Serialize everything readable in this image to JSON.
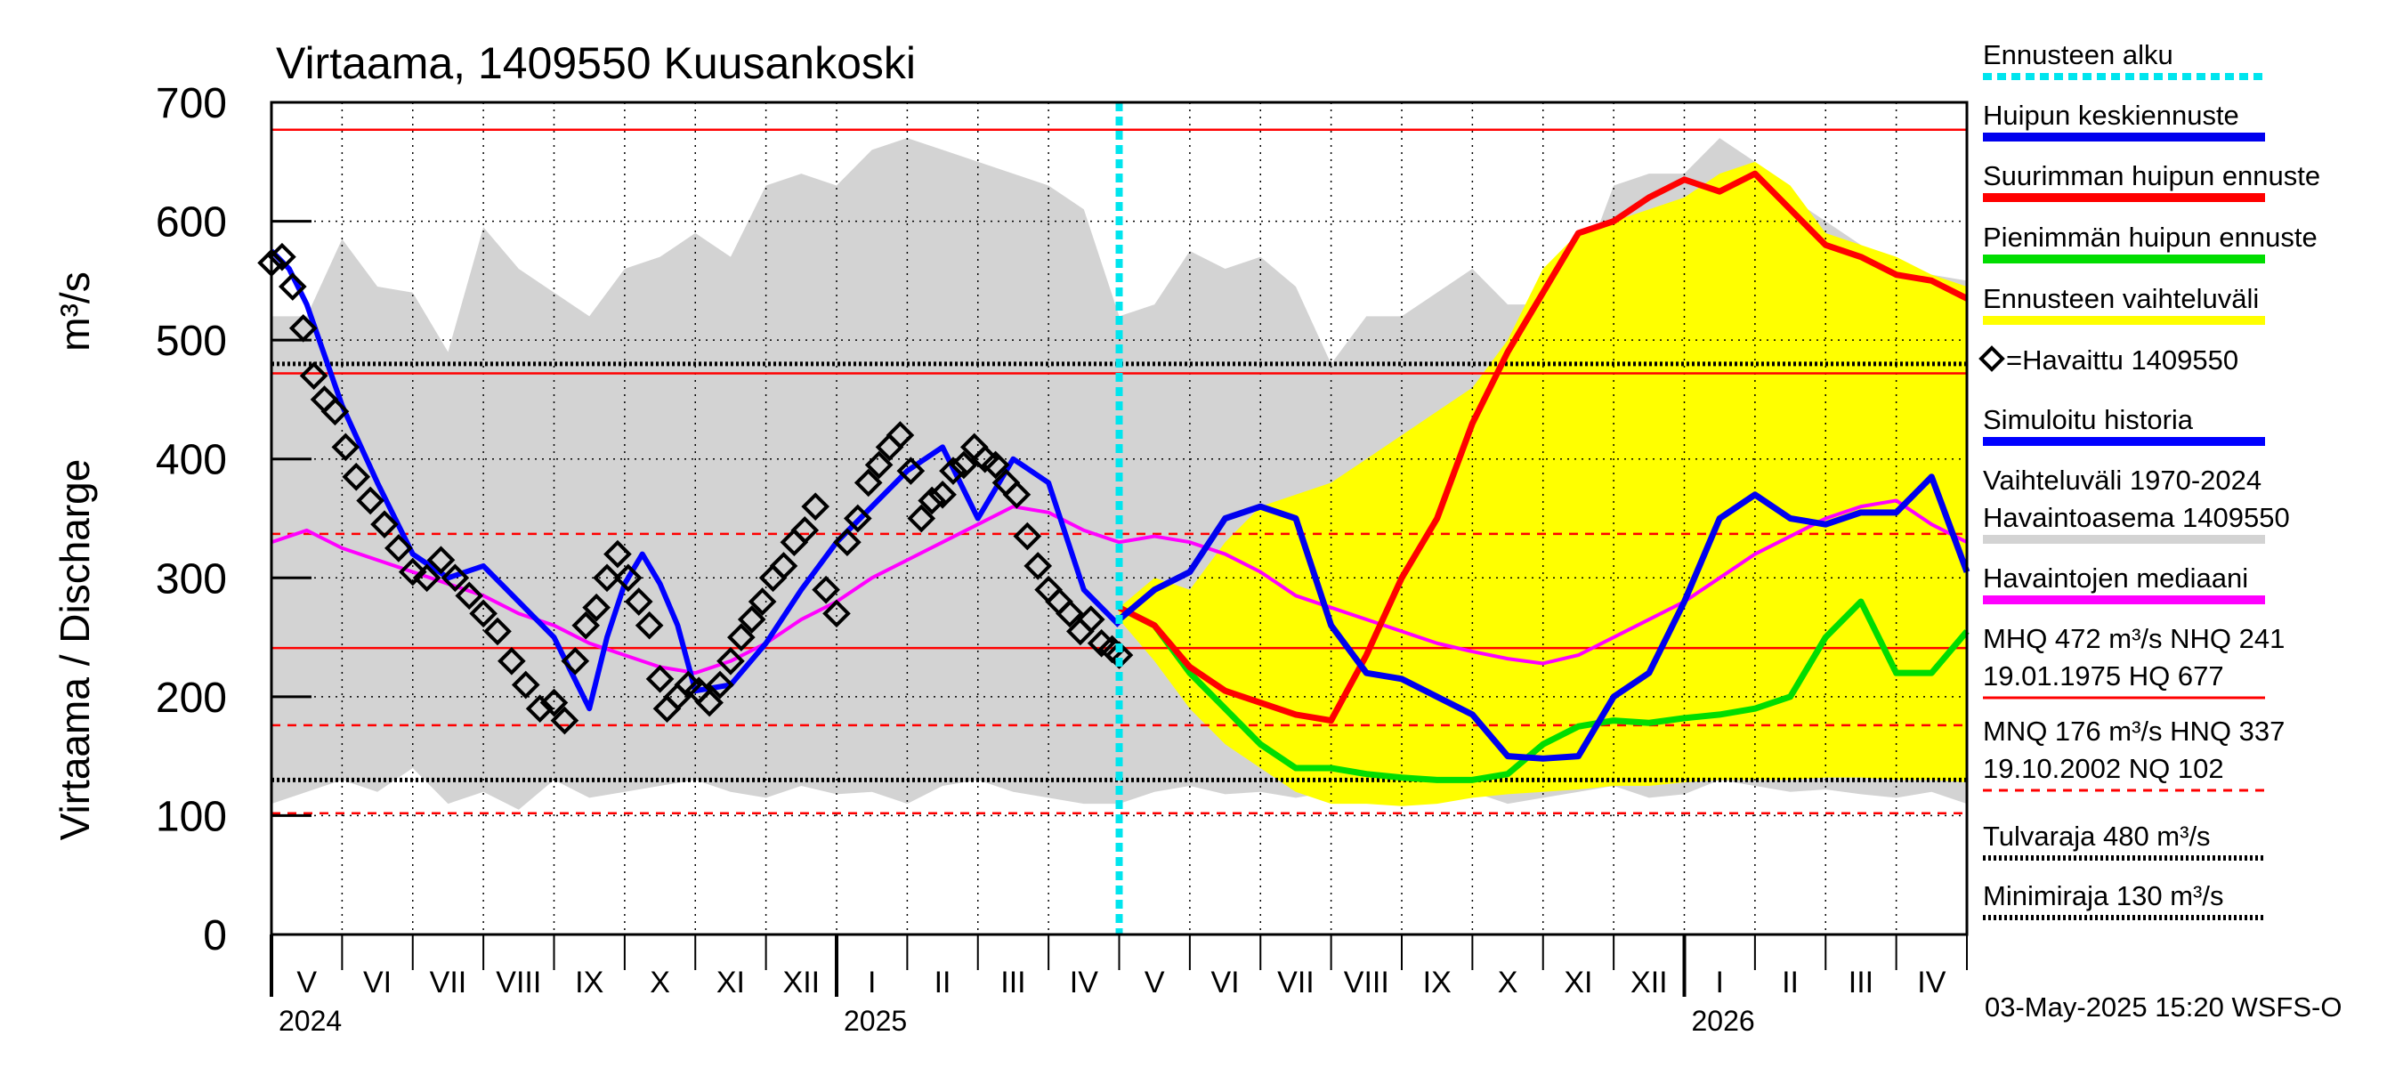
{
  "chart_data": {
    "type": "line",
    "title": "Virtaama, 1409550 Kuusankoski",
    "ylabel": "Virtaama / Discharge",
    "yunit": "m³/s",
    "ylim": [
      0,
      700
    ],
    "yticks": [
      0,
      100,
      200,
      300,
      400,
      500,
      600,
      700
    ],
    "x_unit": "months since 2024-04-15",
    "xlim": [
      0,
      24
    ],
    "months": [
      {
        "label": "V",
        "x": 0.5
      },
      {
        "label": "VI",
        "x": 1.5
      },
      {
        "label": "VII",
        "x": 2.5
      },
      {
        "label": "VIII",
        "x": 3.5
      },
      {
        "label": "IX",
        "x": 4.5
      },
      {
        "label": "X",
        "x": 5.5
      },
      {
        "label": "XI",
        "x": 6.5
      },
      {
        "label": "XII",
        "x": 7.5
      },
      {
        "label": "I",
        "x": 8.5
      },
      {
        "label": "II",
        "x": 9.5
      },
      {
        "label": "III",
        "x": 10.5
      },
      {
        "label": "IV",
        "x": 11.5
      },
      {
        "label": "V",
        "x": 12.5
      },
      {
        "label": "VI",
        "x": 13.5
      },
      {
        "label": "VII",
        "x": 14.5
      },
      {
        "label": "VIII",
        "x": 15.5
      },
      {
        "label": "IX",
        "x": 16.5
      },
      {
        "label": "X",
        "x": 17.5
      },
      {
        "label": "XI",
        "x": 18.5
      },
      {
        "label": "XII",
        "x": 19.5
      },
      {
        "label": "I",
        "x": 20.5
      },
      {
        "label": "II",
        "x": 21.5
      },
      {
        "label": "III",
        "x": 22.5
      },
      {
        "label": "IV",
        "x": 23.5
      }
    ],
    "years": [
      {
        "label": "2024",
        "x": 0
      },
      {
        "label": "2025",
        "x": 8
      },
      {
        "label": "2026",
        "x": 20
      }
    ],
    "forecast_start_x": 12,
    "timestamp": "03-May-2025 15:20 WSFS-O",
    "colors": {
      "range": "#d3d3d3",
      "forecast_range": "#ffff00",
      "median": "#ff00ff",
      "max_peak": "#ff0000",
      "min_peak": "#00dd00",
      "mean_peak": "#0000ee",
      "simulated": "#0000ff",
      "forecast_start": "#00e5ee",
      "threshold": "#ff0000"
    },
    "reference_lines": [
      {
        "value": 677,
        "style": "solid",
        "color": "#ff0000"
      },
      {
        "value": 472,
        "style": "solid",
        "color": "#ff0000"
      },
      {
        "value": 337,
        "style": "dashed",
        "color": "#ff0000"
      },
      {
        "value": 241,
        "style": "solid",
        "color": "#ff0000"
      },
      {
        "value": 176,
        "style": "dashed",
        "color": "#ff0000"
      },
      {
        "value": 102,
        "style": "dashed",
        "color": "#ff0000"
      },
      {
        "value": 480,
        "style": "dotted",
        "color": "#000000"
      },
      {
        "value": 130,
        "style": "dotted",
        "color": "#000000"
      }
    ],
    "series": [
      {
        "name": "Vaihteluväli 1970-2024 Havaintoasema 1409550",
        "kind": "band",
        "x": [
          0,
          0.5,
          1,
          1.5,
          2,
          2.5,
          3,
          3.5,
          4,
          4.5,
          5,
          5.5,
          6,
          6.5,
          7,
          7.5,
          8,
          8.5,
          9,
          9.5,
          10,
          10.5,
          11,
          11.5,
          12,
          12.5,
          13,
          13.5,
          14,
          14.5,
          15,
          15.5,
          16,
          16.5,
          17,
          17.5,
          18,
          18.5,
          19,
          19.5,
          20,
          20.5,
          21,
          21.5,
          22,
          22.5,
          23,
          23.5,
          24
        ],
        "upper": [
          520,
          520,
          585,
          545,
          540,
          490,
          595,
          560,
          540,
          520,
          560,
          570,
          590,
          570,
          630,
          640,
          630,
          660,
          670,
          660,
          650,
          640,
          630,
          610,
          520,
          530,
          575,
          560,
          570,
          545,
          480,
          520,
          520,
          540,
          560,
          530,
          530,
          550,
          630,
          640,
          640,
          670,
          650,
          620,
          600,
          580,
          560,
          555,
          550
        ],
        "lower": [
          110,
          120,
          130,
          120,
          140,
          110,
          120,
          105,
          130,
          115,
          120,
          125,
          130,
          120,
          115,
          125,
          118,
          120,
          110,
          125,
          130,
          120,
          115,
          110,
          110,
          120,
          125,
          118,
          120,
          115,
          120,
          112,
          115,
          118,
          120,
          110,
          115,
          120,
          125,
          115,
          118,
          130,
          125,
          120,
          122,
          118,
          115,
          120,
          110
        ]
      },
      {
        "name": "Ennusteen vaihteluväli",
        "kind": "band",
        "x": [
          12,
          12.5,
          13,
          13.5,
          14,
          14.5,
          15,
          15.5,
          16,
          16.5,
          17,
          17.5,
          18,
          18.5,
          19,
          19.5,
          20,
          20.5,
          21,
          21.5,
          22,
          22.5,
          23,
          23.5,
          24
        ],
        "upper": [
          275,
          300,
          290,
          330,
          360,
          370,
          380,
          400,
          420,
          440,
          460,
          500,
          560,
          590,
          600,
          610,
          620,
          640,
          650,
          630,
          590,
          580,
          570,
          555,
          545
        ],
        "lower": [
          265,
          230,
          190,
          160,
          140,
          120,
          110,
          110,
          108,
          110,
          115,
          118,
          120,
          122,
          125,
          125,
          128,
          130,
          130,
          130,
          132,
          132,
          130,
          130,
          128
        ]
      },
      {
        "name": "Havaintojen mediaani",
        "kind": "line",
        "x": [
          0,
          0.5,
          1,
          1.5,
          2,
          2.5,
          3,
          3.5,
          4,
          4.5,
          5,
          5.5,
          6,
          6.5,
          7,
          7.5,
          8,
          8.5,
          9,
          9.5,
          10,
          10.5,
          11,
          11.5,
          12,
          12.5,
          13,
          13.5,
          14,
          14.5,
          15,
          15.5,
          16,
          16.5,
          17,
          17.5,
          18,
          18.5,
          19,
          19.5,
          20,
          20.5,
          21,
          21.5,
          22,
          22.5,
          23,
          23.5,
          24
        ],
        "y": [
          330,
          340,
          325,
          315,
          305,
          295,
          285,
          270,
          260,
          245,
          235,
          225,
          220,
          230,
          245,
          265,
          280,
          300,
          315,
          330,
          345,
          360,
          355,
          340,
          330,
          335,
          330,
          320,
          305,
          285,
          275,
          265,
          255,
          245,
          238,
          232,
          228,
          235,
          250,
          265,
          280,
          300,
          320,
          335,
          350,
          360,
          365,
          345,
          330
        ]
      },
      {
        "name": "Suurimman huipun ennuste",
        "kind": "line",
        "x": [
          12,
          12.5,
          13,
          13.5,
          14,
          14.5,
          15,
          15.5,
          16,
          16.5,
          17,
          17.5,
          18,
          18.5,
          19,
          19.5,
          20,
          20.5,
          21,
          21.5,
          22,
          22.5,
          23,
          23.5,
          24
        ],
        "y": [
          275,
          260,
          225,
          205,
          195,
          185,
          180,
          235,
          300,
          350,
          430,
          490,
          540,
          590,
          600,
          620,
          635,
          625,
          640,
          610,
          580,
          570,
          555,
          550,
          535
        ]
      },
      {
        "name": "Pienimmän huipun ennuste",
        "kind": "line",
        "x": [
          12,
          12.5,
          13,
          13.5,
          14,
          14.5,
          15,
          15.5,
          16,
          16.5,
          17,
          17.5,
          18,
          18.5,
          19,
          19.5,
          20,
          20.5,
          21,
          21.5,
          22,
          22.5,
          23,
          23.5,
          24
        ],
        "y": [
          275,
          260,
          220,
          190,
          160,
          140,
          140,
          135,
          132,
          130,
          130,
          135,
          160,
          175,
          180,
          178,
          182,
          185,
          190,
          200,
          250,
          280,
          220,
          220,
          255
        ]
      },
      {
        "name": "Huipun keskiennuste",
        "kind": "line",
        "x": [
          12,
          12.5,
          13,
          13.5,
          14,
          14.5,
          15,
          15.5,
          16,
          16.5,
          17,
          17.5,
          18,
          18.5,
          19,
          19.5,
          20,
          20.5,
          21,
          21.5,
          22,
          22.5,
          23,
          23.5,
          24
        ],
        "y": [
          265,
          290,
          305,
          350,
          360,
          350,
          260,
          220,
          215,
          200,
          185,
          150,
          148,
          150,
          200,
          220,
          280,
          350,
          370,
          350,
          345,
          355,
          355,
          385,
          305
        ]
      },
      {
        "name": "Simuloitu historia",
        "kind": "line",
        "x": [
          0,
          0.25,
          0.5,
          1,
          1.5,
          2,
          2.5,
          3,
          3.5,
          4,
          4.5,
          4.75,
          5,
          5.25,
          5.5,
          5.75,
          6,
          6.5,
          7,
          7.5,
          8,
          8.5,
          9,
          9.5,
          10,
          10.5,
          11,
          11.5,
          12
        ],
        "y": [
          575,
          560,
          530,
          445,
          380,
          320,
          300,
          310,
          280,
          250,
          190,
          250,
          295,
          320,
          295,
          260,
          205,
          210,
          245,
          290,
          330,
          360,
          390,
          410,
          350,
          400,
          380,
          290,
          260
        ]
      },
      {
        "name": "Havaittu 1409550",
        "kind": "points",
        "x": [
          0,
          0.15,
          0.3,
          0.45,
          0.6,
          0.75,
          0.9,
          1.05,
          1.2,
          1.4,
          1.6,
          1.8,
          2.0,
          2.2,
          2.4,
          2.6,
          2.8,
          3.0,
          3.2,
          3.4,
          3.6,
          3.8,
          4.0,
          4.15,
          4.3,
          4.45,
          4.6,
          4.75,
          4.9,
          5.05,
          5.2,
          5.35,
          5.5,
          5.6,
          5.75,
          5.9,
          6.05,
          6.2,
          6.35,
          6.5,
          6.65,
          6.8,
          6.95,
          7.1,
          7.25,
          7.4,
          7.55,
          7.7,
          7.85,
          8.0,
          8.15,
          8.3,
          8.45,
          8.6,
          8.75,
          8.9,
          9.05,
          9.2,
          9.35,
          9.5,
          9.65,
          9.8,
          9.95,
          10.1,
          10.25,
          10.4,
          10.55,
          10.7,
          10.85,
          11.0,
          11.15,
          11.3,
          11.45,
          11.6,
          11.75,
          11.9,
          12.0
        ],
        "y": [
          565,
          570,
          545,
          510,
          470,
          450,
          440,
          410,
          385,
          365,
          345,
          325,
          305,
          300,
          315,
          300,
          285,
          270,
          255,
          230,
          210,
          190,
          195,
          180,
          230,
          260,
          275,
          300,
          320,
          300,
          280,
          260,
          215,
          190,
          200,
          210,
          205,
          195,
          210,
          230,
          250,
          265,
          280,
          300,
          310,
          330,
          340,
          360,
          290,
          270,
          330,
          350,
          380,
          395,
          410,
          420,
          390,
          350,
          365,
          370,
          390,
          395,
          410,
          400,
          395,
          380,
          370,
          335,
          310,
          290,
          280,
          270,
          255,
          265,
          245,
          240,
          235
        ]
      }
    ],
    "legend": [
      {
        "label": "Ennusteen alku",
        "style": "dotted",
        "color": "#00e5ee"
      },
      {
        "label": "Huipun keskiennuste",
        "style": "solid",
        "color": "#0000ee"
      },
      {
        "label": "Suurimman huipun ennuste",
        "style": "solid",
        "color": "#ff0000"
      },
      {
        "label": "Pienimmän huipun ennuste",
        "style": "solid",
        "color": "#00dd00"
      },
      {
        "label": "Ennusteen vaihteluväli",
        "style": "solid",
        "color": "#ffff00"
      },
      {
        "label": "=Havaittu 1409550",
        "style": "marker",
        "color": "#000000"
      },
      {
        "label": "Simuloitu historia",
        "style": "solid",
        "color": "#0000ff"
      },
      {
        "label": "Vaihteluväli 1970-2024",
        "label2": " Havaintoasema 1409550",
        "style": "solid",
        "color": "#d3d3d3"
      },
      {
        "label": "Havaintojen mediaani",
        "style": "solid",
        "color": "#ff00ff"
      },
      {
        "label": "MHQ  472 m³/s NHQ  241",
        "label2": "19.01.1975 HQ  677",
        "style": "solid",
        "color": "#ff0000"
      },
      {
        "label": "MNQ  176 m³/s HNQ  337",
        "label2": "19.10.2002 NQ  102",
        "style": "dashed",
        "color": "#ff0000"
      },
      {
        "label": "Tulvaraja 480 m³/s",
        "style": "dotted",
        "color": "#000000"
      },
      {
        "label": "Minimiraja 130 m³/s",
        "style": "dotted",
        "color": "#000000"
      }
    ]
  }
}
